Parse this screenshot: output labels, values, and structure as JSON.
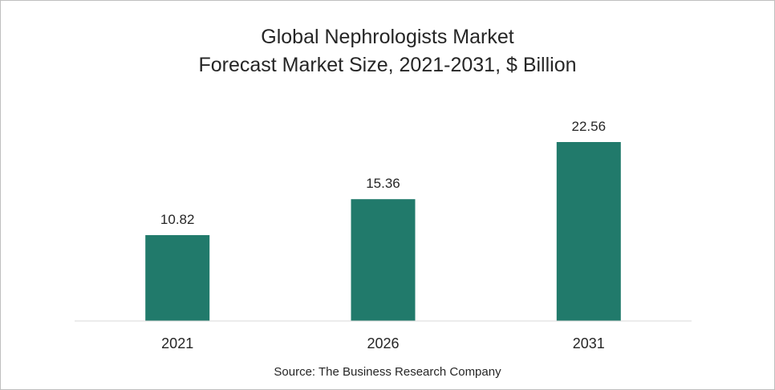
{
  "chart_data": {
    "type": "bar",
    "title": "Global Nephrologists Market",
    "subtitle": "Forecast Market Size, 2021-2031, $ Billion",
    "categories": [
      "2021",
      "2026",
      "2031"
    ],
    "values": [
      10.82,
      15.36,
      22.56
    ],
    "data_labels": [
      "10.82",
      "15.36",
      "22.56"
    ],
    "bar_color": "#217a6b",
    "ylim": [
      0,
      25
    ],
    "grid": false,
    "legend": "none",
    "xlabel": "",
    "ylabel": ""
  },
  "source": "Source: The Business Research Company",
  "colors": {
    "text": "#262626",
    "axis": "#d9d9d9",
    "border": "#bfbfbf"
  }
}
